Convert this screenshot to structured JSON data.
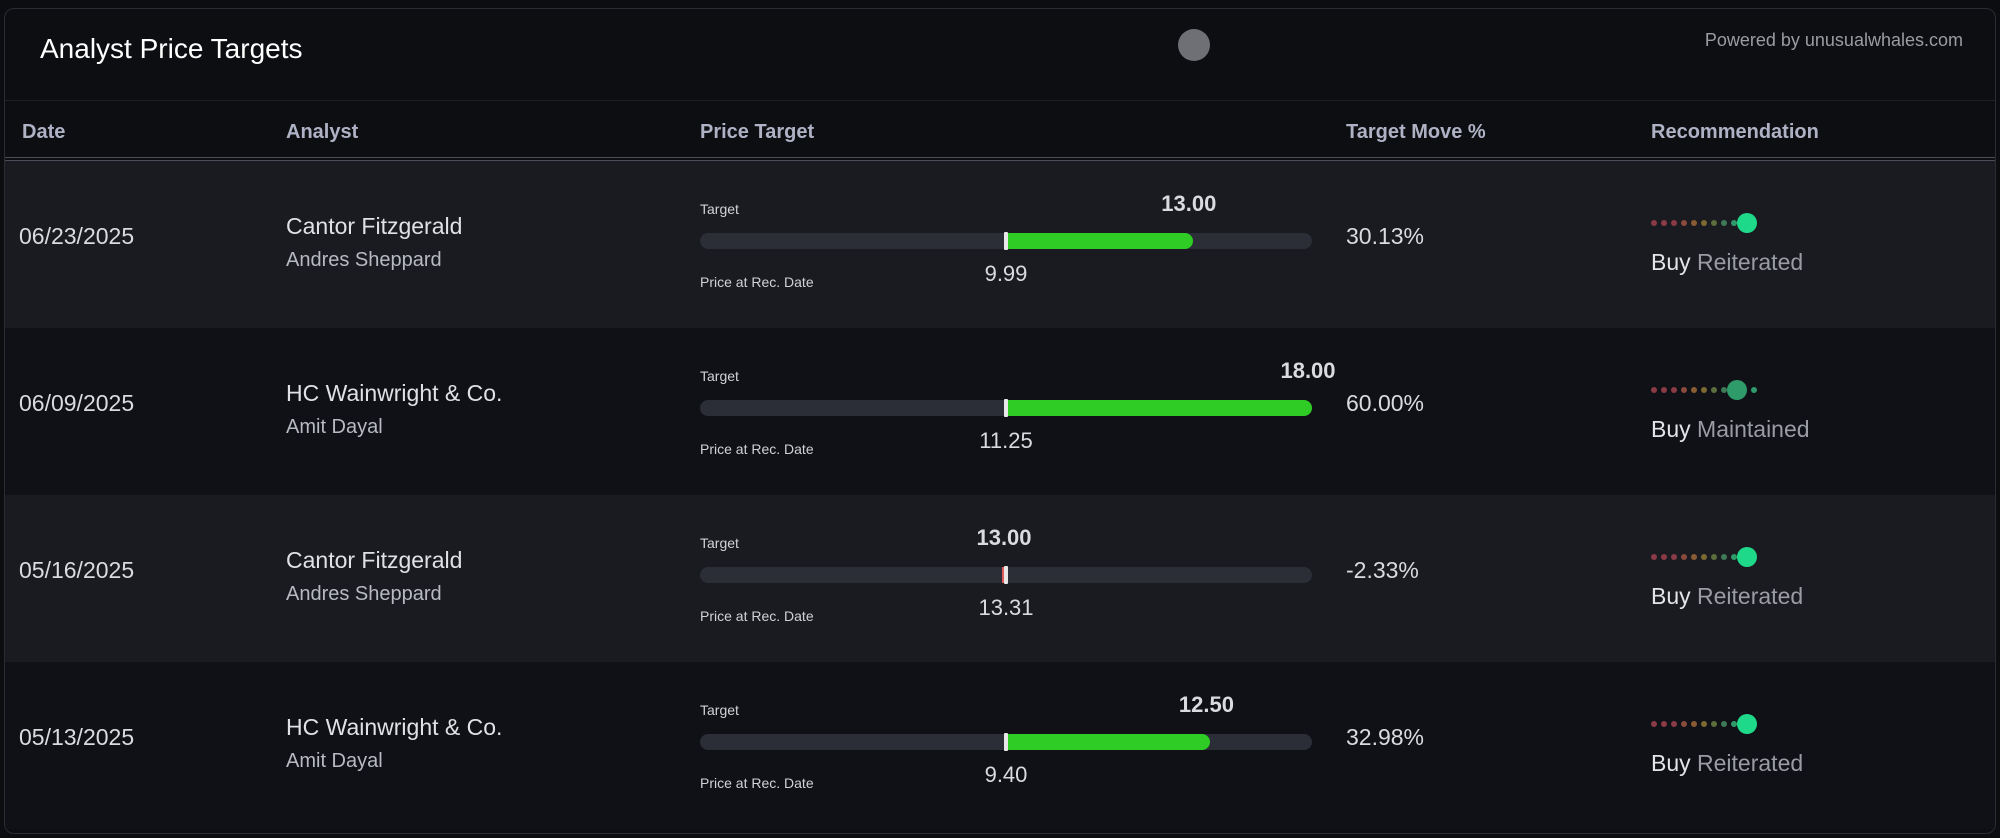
{
  "header": {
    "title": "Analyst Price Targets",
    "powered_by": "Powered by unusualwhales.com"
  },
  "columns": {
    "date": "Date",
    "analyst": "Analyst",
    "price_target": "Price Target",
    "target_move": "Target Move %",
    "recommendation": "Recommendation"
  },
  "labels": {
    "target": "Target",
    "price_at_rec": "Price at Rec. Date"
  },
  "colors": {
    "up": "#2ecc24",
    "down": "#e05a5a",
    "rating_active": "#1fd98a",
    "rating_dim": "#2f9a6a"
  },
  "rows": [
    {
      "date": "06/23/2025",
      "firm": "Cantor Fitzgerald",
      "analyst": "Andres Sheppard",
      "target": "13.00",
      "price_at_rec": "9.99",
      "move": "30.13%",
      "action": "Buy",
      "status": "Reiterated",
      "rating_level": 9
    },
    {
      "date": "06/09/2025",
      "firm": "HC Wainwright & Co.",
      "analyst": "Amit Dayal",
      "target": "18.00",
      "price_at_rec": "11.25",
      "move": "60.00%",
      "action": "Buy",
      "status": "Maintained",
      "rating_level": 8
    },
    {
      "date": "05/16/2025",
      "firm": "Cantor Fitzgerald",
      "analyst": "Andres Sheppard",
      "target": "13.00",
      "price_at_rec": "13.31",
      "move": "-2.33%",
      "action": "Buy",
      "status": "Reiterated",
      "rating_level": 9
    },
    {
      "date": "05/13/2025",
      "firm": "HC Wainwright & Co.",
      "analyst": "Amit Dayal",
      "target": "12.50",
      "price_at_rec": "9.40",
      "move": "32.98%",
      "action": "Buy",
      "status": "Reiterated",
      "rating_level": 9
    }
  ]
}
